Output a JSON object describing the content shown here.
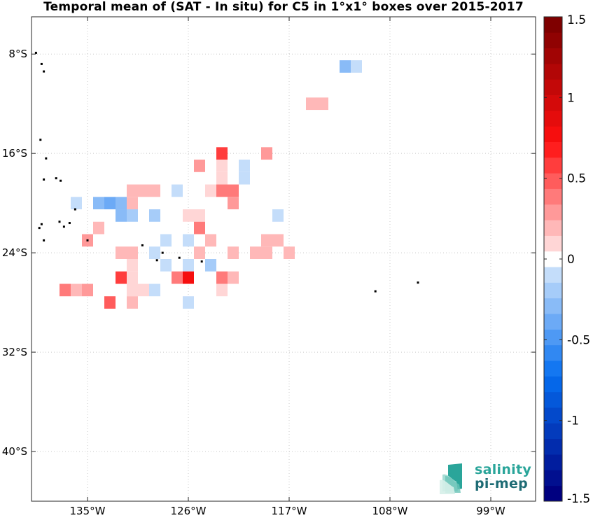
{
  "chart_data": {
    "type": "heatmap",
    "title": "Temporal mean of (SAT - In situ) for C5 in 1°x1° boxes over 2015-2017",
    "x_ticks": [
      {
        "value": -135,
        "label": "135°W"
      },
      {
        "value": -126,
        "label": "126°W"
      },
      {
        "value": -117,
        "label": "117°W"
      },
      {
        "value": -108,
        "label": "108°W"
      },
      {
        "value": -99,
        "label": "99°W"
      }
    ],
    "y_ticks": [
      {
        "value": -8,
        "label": "8°S"
      },
      {
        "value": -16,
        "label": "16°S"
      },
      {
        "value": -24,
        "label": "24°S"
      },
      {
        "value": -32,
        "label": "32°S"
      },
      {
        "value": -40,
        "label": "40°S"
      }
    ],
    "xlim": [
      -140,
      -95
    ],
    "ylim": [
      -44,
      -5
    ],
    "grid": true,
    "colorbar": {
      "min": -1.5,
      "max": 1.5,
      "levels": 31,
      "placement": "right",
      "ticks": [
        {
          "value": 1.5,
          "label": "1.5"
        },
        {
          "value": 1,
          "label": "1"
        },
        {
          "value": 0.5,
          "label": "0.5"
        },
        {
          "value": 0,
          "label": "0"
        },
        {
          "value": -0.5,
          "label": "-0.5"
        },
        {
          "value": -1,
          "label": "-1"
        },
        {
          "value": -1.5,
          "label": "-1.5"
        }
      ]
    },
    "cells": [
      {
        "lon": -112,
        "lat": -9,
        "value": -0.3
      },
      {
        "lon": -111,
        "lat": -9,
        "value": -0.1
      },
      {
        "lon": -115,
        "lat": -12,
        "value": 0.2
      },
      {
        "lon": -114,
        "lat": -12,
        "value": 0.2
      },
      {
        "lon": -123,
        "lat": -16,
        "value": 0.6
      },
      {
        "lon": -119,
        "lat": -16,
        "value": 0.3
      },
      {
        "lon": -125,
        "lat": -17,
        "value": 0.3
      },
      {
        "lon": -123,
        "lat": -17,
        "value": 0.1
      },
      {
        "lon": -121,
        "lat": -17,
        "value": -0.1
      },
      {
        "lon": -123,
        "lat": -18,
        "value": 0.1
      },
      {
        "lon": -121,
        "lat": -18,
        "value": -0.1
      },
      {
        "lon": -131,
        "lat": -19,
        "value": 0.2
      },
      {
        "lon": -130,
        "lat": -19,
        "value": 0.2
      },
      {
        "lon": -129,
        "lat": -19,
        "value": 0.2
      },
      {
        "lon": -127,
        "lat": -19,
        "value": -0.1
      },
      {
        "lon": -124,
        "lat": -19,
        "value": 0.1
      },
      {
        "lon": -123,
        "lat": -19,
        "value": 0.4
      },
      {
        "lon": -122,
        "lat": -19,
        "value": 0.4
      },
      {
        "lon": -136,
        "lat": -20,
        "value": -0.1
      },
      {
        "lon": -134,
        "lat": -20,
        "value": -0.3
      },
      {
        "lon": -133,
        "lat": -20,
        "value": -0.4
      },
      {
        "lon": -132,
        "lat": -20,
        "value": -0.3
      },
      {
        "lon": -131,
        "lat": -20,
        "value": 0.2
      },
      {
        "lon": -122,
        "lat": -20,
        "value": 0.3
      },
      {
        "lon": -132,
        "lat": -21,
        "value": -0.3
      },
      {
        "lon": -131,
        "lat": -21,
        "value": -0.2
      },
      {
        "lon": -129,
        "lat": -21,
        "value": -0.2
      },
      {
        "lon": -126,
        "lat": -21,
        "value": 0.1
      },
      {
        "lon": -125,
        "lat": -21,
        "value": 0.1
      },
      {
        "lon": -118,
        "lat": -21,
        "value": -0.1
      },
      {
        "lon": -134,
        "lat": -22,
        "value": 0.2
      },
      {
        "lon": -125,
        "lat": -22,
        "value": 0.4
      },
      {
        "lon": -135,
        "lat": -23,
        "value": 0.3
      },
      {
        "lon": -128,
        "lat": -23,
        "value": -0.1
      },
      {
        "lon": -126,
        "lat": -23,
        "value": -0.1
      },
      {
        "lon": -124,
        "lat": -23,
        "value": 0.2
      },
      {
        "lon": -119,
        "lat": -23,
        "value": 0.2
      },
      {
        "lon": -118,
        "lat": -23,
        "value": 0.2
      },
      {
        "lon": -132,
        "lat": -24,
        "value": 0.2
      },
      {
        "lon": -131,
        "lat": -24,
        "value": 0.2
      },
      {
        "lon": -129,
        "lat": -24,
        "value": -0.1
      },
      {
        "lon": -125,
        "lat": -24,
        "value": 0.2
      },
      {
        "lon": -122,
        "lat": -24,
        "value": 0.2
      },
      {
        "lon": -120,
        "lat": -24,
        "value": 0.2
      },
      {
        "lon": -119,
        "lat": -24,
        "value": 0.2
      },
      {
        "lon": -117,
        "lat": -24,
        "value": 0.2
      },
      {
        "lon": -131,
        "lat": -25,
        "value": 0.1
      },
      {
        "lon": -128,
        "lat": -25,
        "value": -0.1
      },
      {
        "lon": -126,
        "lat": -25,
        "value": -0.1
      },
      {
        "lon": -124,
        "lat": -25,
        "value": -0.2
      },
      {
        "lon": -132,
        "lat": -26,
        "value": 0.6
      },
      {
        "lon": -131,
        "lat": -26,
        "value": 0.1
      },
      {
        "lon": -127,
        "lat": -26,
        "value": 0.4
      },
      {
        "lon": -126,
        "lat": -26,
        "value": 0.8
      },
      {
        "lon": -123,
        "lat": -26,
        "value": 0.4
      },
      {
        "lon": -122,
        "lat": -26,
        "value": 0.2
      },
      {
        "lon": -137,
        "lat": -27,
        "value": 0.4
      },
      {
        "lon": -136,
        "lat": -27,
        "value": 0.2
      },
      {
        "lon": -135,
        "lat": -27,
        "value": 0.3
      },
      {
        "lon": -131,
        "lat": -27,
        "value": 0.1
      },
      {
        "lon": -130,
        "lat": -27,
        "value": 0.1
      },
      {
        "lon": -129,
        "lat": -27,
        "value": -0.1
      },
      {
        "lon": -123,
        "lat": -27,
        "value": 0.1
      },
      {
        "lon": -133,
        "lat": -28,
        "value": 0.5
      },
      {
        "lon": -131,
        "lat": -28,
        "value": 0.2
      },
      {
        "lon": -126,
        "lat": -28,
        "value": -0.1
      }
    ],
    "land": [
      {
        "lon": -139.6,
        "lat": -7.9
      },
      {
        "lon": -139.1,
        "lat": -8.8
      },
      {
        "lon": -138.9,
        "lat": -9.4
      },
      {
        "lon": -139.2,
        "lat": -14.9
      },
      {
        "lon": -138.7,
        "lat": -16.4
      },
      {
        "lon": -138.9,
        "lat": -18.1
      },
      {
        "lon": -137.8,
        "lat": -18.0
      },
      {
        "lon": -137.4,
        "lat": -18.2
      },
      {
        "lon": -136.1,
        "lat": -20.5
      },
      {
        "lon": -137.5,
        "lat": -21.5
      },
      {
        "lon": -137.1,
        "lat": -21.9
      },
      {
        "lon": -136.6,
        "lat": -21.6
      },
      {
        "lon": -139.1,
        "lat": -21.7
      },
      {
        "lon": -139.3,
        "lat": -22.0
      },
      {
        "lon": -138.9,
        "lat": -23.0
      },
      {
        "lon": -135.0,
        "lat": -23.0
      },
      {
        "lon": -130.1,
        "lat": -23.4
      },
      {
        "lon": -128.3,
        "lat": -24.0
      },
      {
        "lon": -128.8,
        "lat": -24.6
      },
      {
        "lon": -126.8,
        "lat": -24.4
      },
      {
        "lon": -124.8,
        "lat": -24.7
      },
      {
        "lon": -109.3,
        "lat": -27.1
      },
      {
        "lon": -105.5,
        "lat": -26.4
      }
    ]
  },
  "logo": {
    "line1": "salinity",
    "line2": "pi-mep",
    "accent": "#2aa59a",
    "dark": "#1d6b74"
  }
}
